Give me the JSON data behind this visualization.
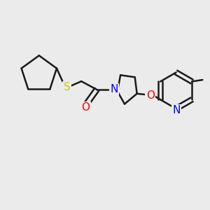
{
  "background_color": "#ebebeb",
  "bond_color": "#1a1a1a",
  "bond_width": 1.8,
  "sulfur_color": "#cccc00",
  "oxygen_color": "#ff0000",
  "nitrogen_color": "#0000ff",
  "figsize": [
    3.0,
    3.0
  ],
  "dpi": 100,
  "xlim": [
    0,
    10
  ],
  "ylim": [
    0,
    10
  ]
}
